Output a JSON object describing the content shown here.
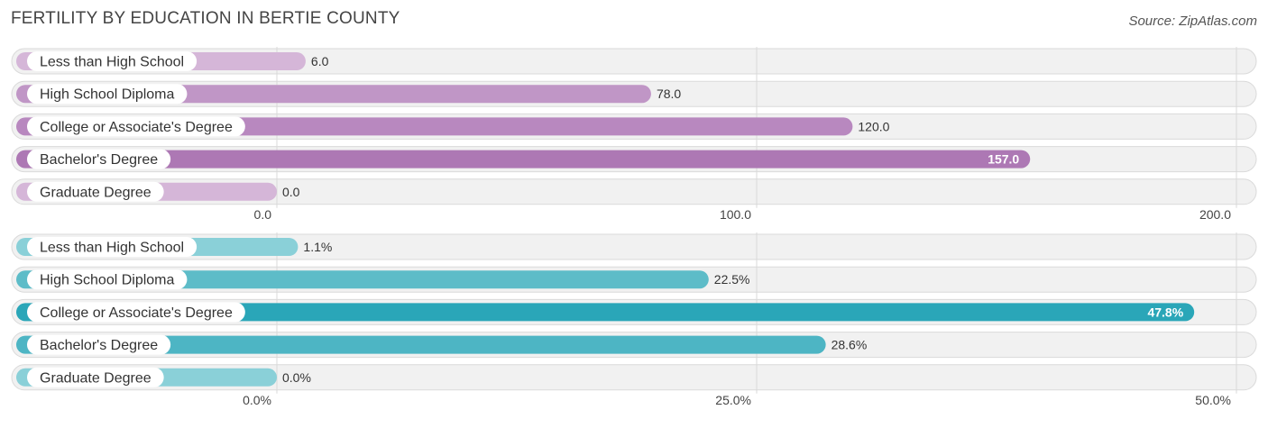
{
  "title": "FERTILITY BY EDUCATION IN BERTIE COUNTY",
  "source": "Source: ZipAtlas.com",
  "chart_data": [
    {
      "type": "bar",
      "orientation": "horizontal",
      "categories": [
        "Less than High School",
        "High School Diploma",
        "College or Associate's Degree",
        "Bachelor's Degree",
        "Graduate Degree"
      ],
      "values": [
        6.0,
        78.0,
        120.0,
        157.0,
        0.0
      ],
      "value_labels": [
        "6.0",
        "78.0",
        "120.0",
        "157.0",
        "0.0"
      ],
      "xlim": [
        0,
        200
      ],
      "ticks": [
        0,
        100,
        200
      ],
      "tick_labels": [
        "0.0",
        "100.0",
        "200.0"
      ],
      "colors": [
        "#d5b6d8",
        "#c096c6",
        "#b888bf",
        "#ad78b4",
        "#d5b6d8"
      ],
      "grid": true
    },
    {
      "type": "bar",
      "orientation": "horizontal",
      "categories": [
        "Less than High School",
        "High School Diploma",
        "College or Associate's Degree",
        "Bachelor's Degree",
        "Graduate Degree"
      ],
      "values": [
        1.1,
        22.5,
        47.8,
        28.6,
        0.0
      ],
      "value_labels": [
        "1.1%",
        "22.5%",
        "47.8%",
        "28.6%",
        "0.0%"
      ],
      "xlim": [
        0,
        50
      ],
      "ticks": [
        0,
        25,
        50
      ],
      "tick_labels": [
        "0.0%",
        "25.0%",
        "50.0%"
      ],
      "colors": [
        "#8ad0d8",
        "#5dbcc8",
        "#2aa6b8",
        "#4db5c4",
        "#8ad0d8"
      ],
      "grid": true
    }
  ]
}
